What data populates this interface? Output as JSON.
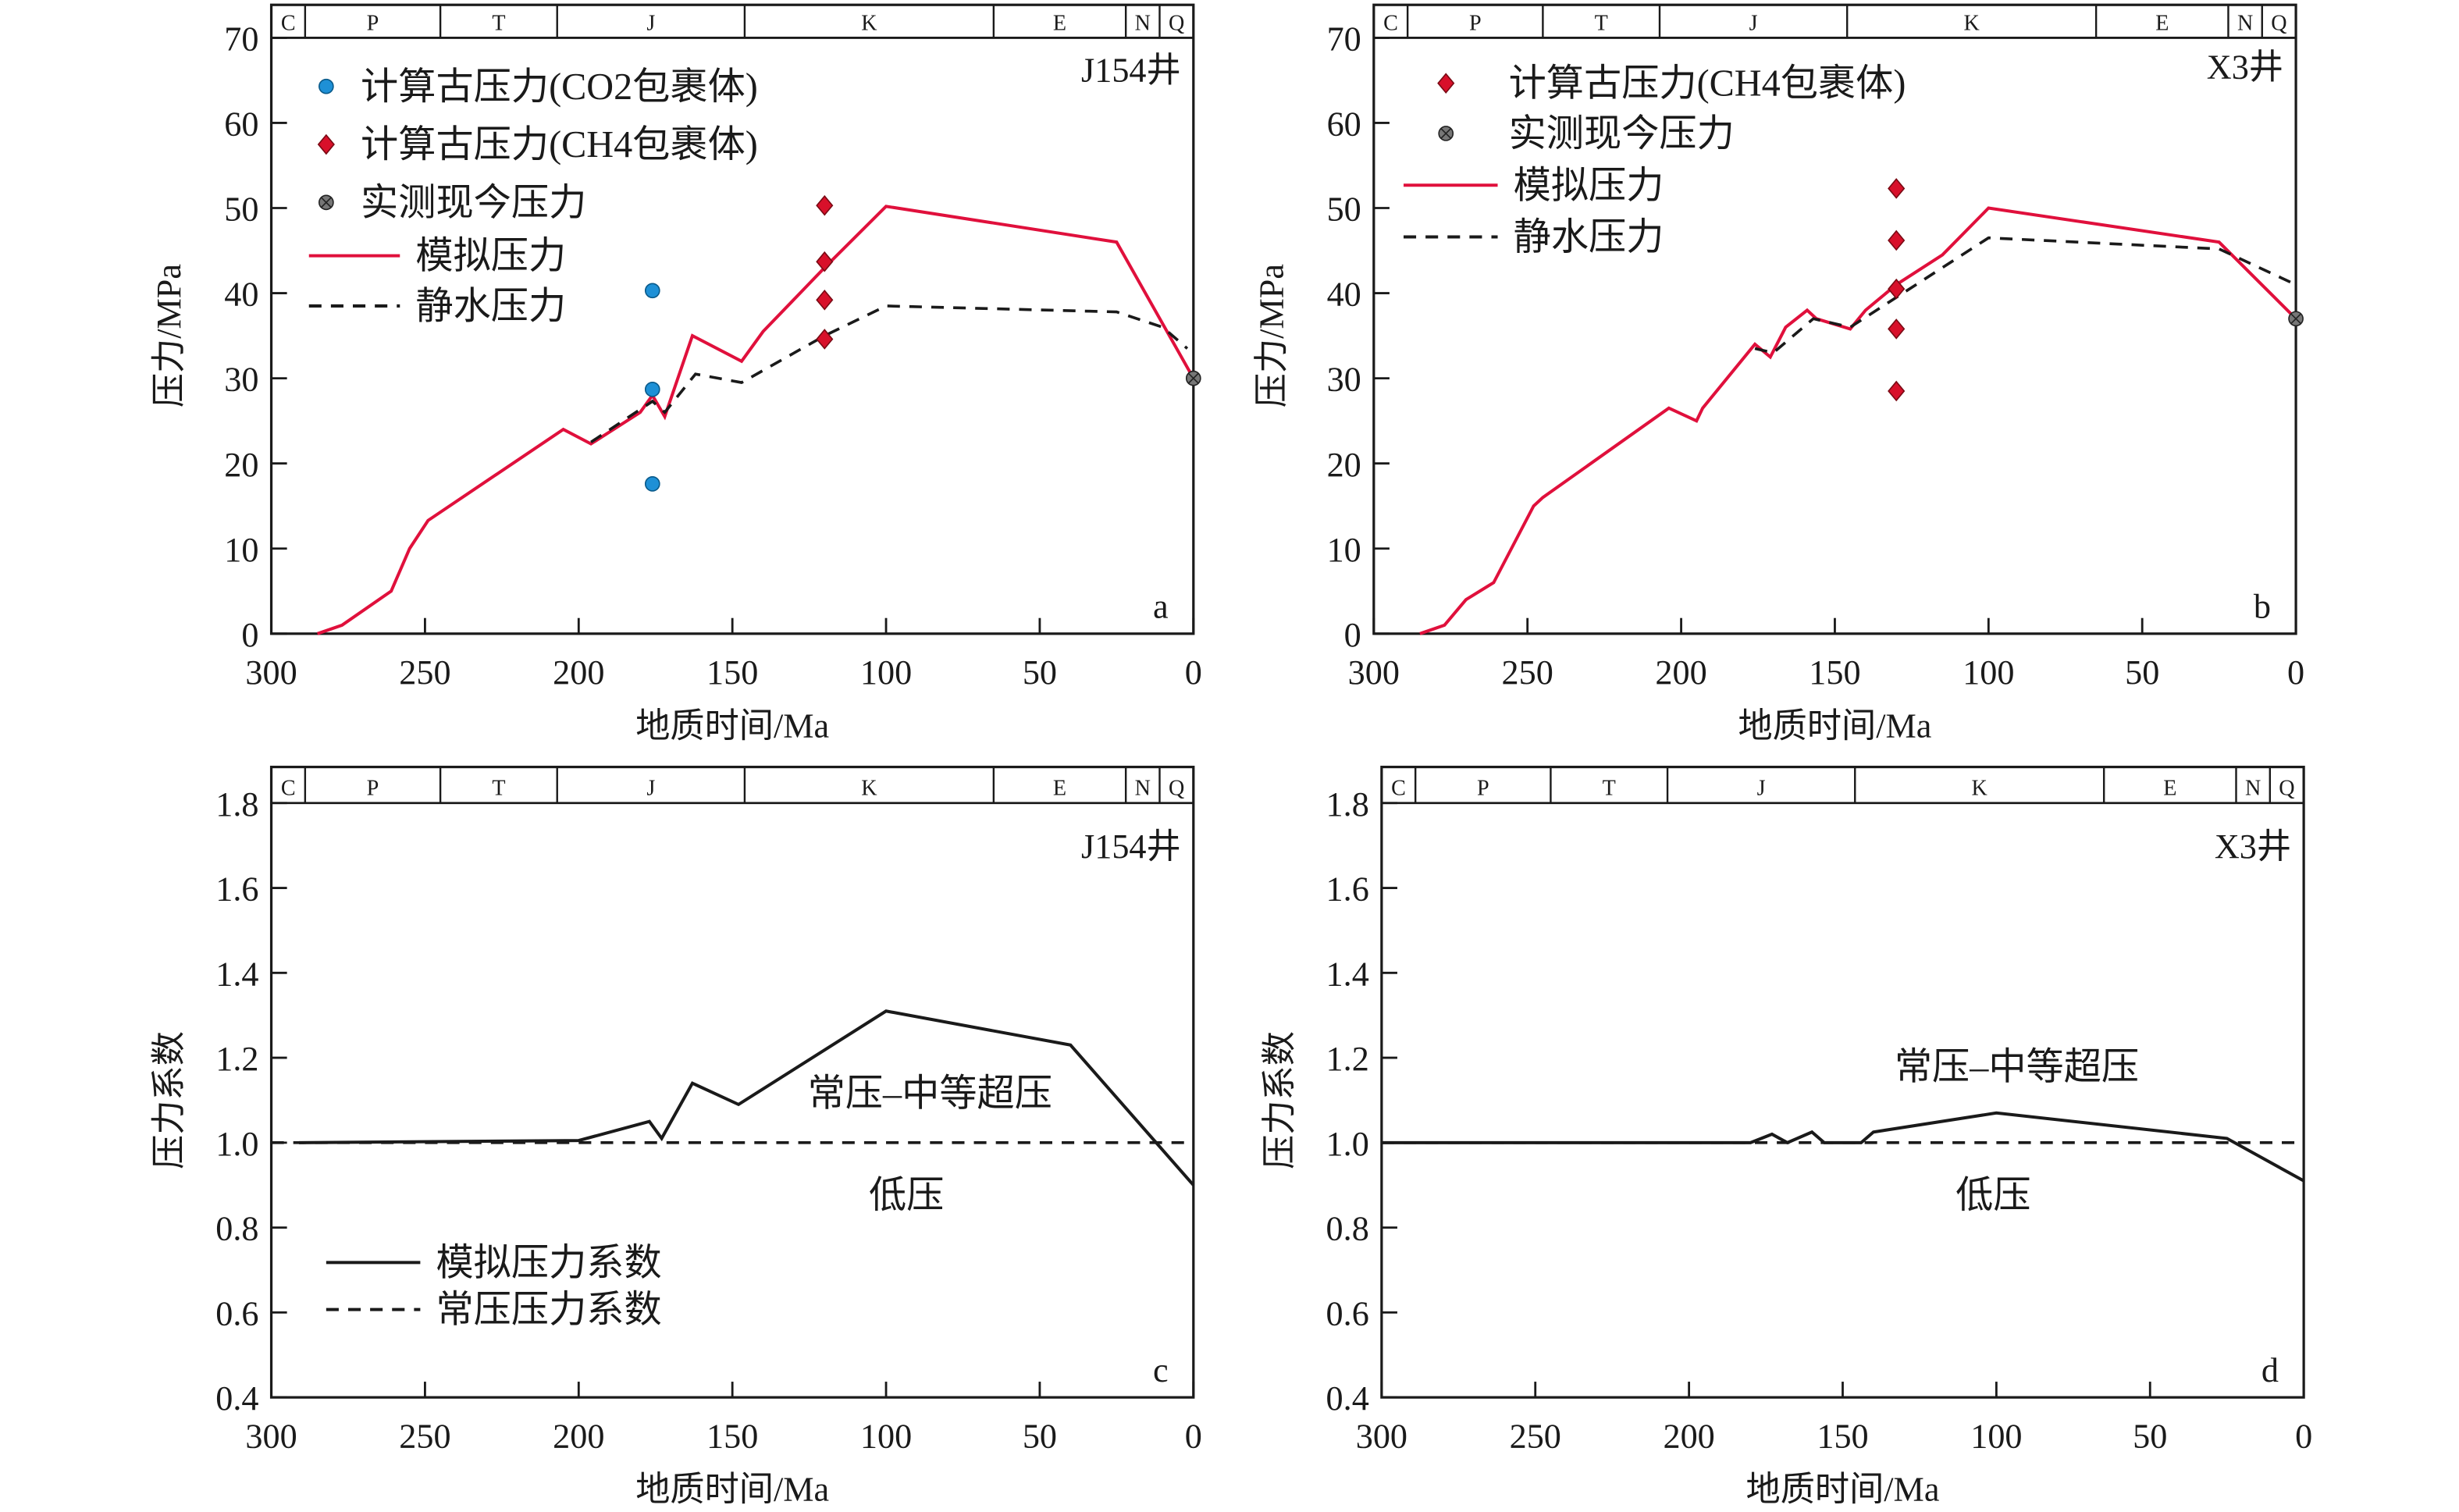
{
  "chart_data": [
    {
      "panel": "a",
      "type": "line",
      "well": "J154井",
      "xlabel": "地质时间/Ma",
      "ylabel": "压力/MPa",
      "xlim": [
        300,
        0
      ],
      "ylim": [
        0,
        70
      ],
      "xticks": [
        300,
        250,
        200,
        150,
        100,
        50,
        0
      ],
      "yticks": [
        0,
        10,
        20,
        30,
        40,
        50,
        60,
        70
      ],
      "periods": [
        "C",
        "P",
        "T",
        "J",
        "K",
        "E",
        "N",
        "Q"
      ],
      "period_bounds": [
        300,
        289,
        245,
        207,
        146,
        65,
        22,
        11,
        0
      ],
      "series": [
        {
          "name": "模拟压力",
          "style": "line",
          "color": "#e0103c",
          "x": [
            285,
            277,
            261,
            255,
            249,
            205,
            196,
            180,
            176,
            172,
            163,
            147,
            140,
            120,
            100,
            25,
            0
          ],
          "y": [
            0,
            1,
            5,
            10,
            13.3,
            24,
            22.3,
            26,
            28,
            25.5,
            35,
            32,
            35.5,
            43,
            50.2,
            46,
            30
          ]
        },
        {
          "name": "静水压力",
          "style": "dashed",
          "color": "#1a1a1a",
          "x": [
            196,
            176,
            172,
            162,
            147,
            120,
            100,
            25,
            10,
            2
          ],
          "y": [
            22.5,
            27.3,
            26,
            30.5,
            29.5,
            35,
            38.5,
            37.8,
            36,
            33.5
          ]
        },
        {
          "name": "计算古压力(CO2包裹体)",
          "style": "circle",
          "color": "#1e90d6",
          "x": [
            176,
            176,
            176
          ],
          "y": [
            40.3,
            28.7,
            17.6
          ]
        },
        {
          "name": "计算古压力(CH4包裹体)",
          "style": "diamond",
          "color": "#d8102a",
          "x": [
            120,
            120,
            120,
            120
          ],
          "y": [
            50.3,
            43.7,
            39.2,
            34.6
          ]
        },
        {
          "name": "实测现今压力",
          "style": "xcircle",
          "color": "#777777",
          "x": [
            0
          ],
          "y": [
            30
          ]
        }
      ],
      "legend_order": [
        2,
        3,
        4,
        0,
        1
      ]
    },
    {
      "panel": "b",
      "type": "line",
      "well": "X3井",
      "xlabel": "地质时间/Ma",
      "ylabel": "压力/MPa",
      "xlim": [
        300,
        0
      ],
      "ylim": [
        0,
        70
      ],
      "xticks": [
        300,
        250,
        200,
        150,
        100,
        50,
        0
      ],
      "yticks": [
        0,
        10,
        20,
        30,
        40,
        50,
        60,
        70
      ],
      "periods": [
        "C",
        "P",
        "T",
        "J",
        "K",
        "E",
        "N",
        "Q"
      ],
      "period_bounds": [
        300,
        289,
        245,
        207,
        146,
        65,
        22,
        11,
        0
      ],
      "series": [
        {
          "name": "模拟压力",
          "style": "line",
          "color": "#e0103c",
          "x": [
            285,
            277,
            270,
            261,
            248,
            245,
            204,
            195,
            193,
            176,
            171,
            166,
            159,
            156,
            145,
            140,
            130,
            115,
            100,
            25,
            0
          ],
          "y": [
            0,
            1,
            4,
            6,
            15,
            16,
            26.5,
            25,
            26.5,
            34,
            32.5,
            36,
            38,
            37,
            35.8,
            38,
            41,
            44.5,
            50,
            46,
            37
          ]
        },
        {
          "name": "静水压力",
          "style": "dashed",
          "color": "#1a1a1a",
          "x": [
            176,
            170,
            157,
            145,
            130,
            100,
            25,
            0
          ],
          "y": [
            33.5,
            33,
            37,
            36,
            39.5,
            46.5,
            45.2,
            41
          ]
        },
        {
          "name": "计算古压力(CH4包裹体)",
          "style": "diamond",
          "color": "#d8102a",
          "x": [
            130,
            130,
            130,
            130,
            130
          ],
          "y": [
            52.3,
            46.2,
            40.5,
            35.8,
            28.5
          ]
        },
        {
          "name": "实测现今压力",
          "style": "xcircle",
          "color": "#777777",
          "x": [
            0
          ],
          "y": [
            37
          ]
        }
      ],
      "legend_order": [
        2,
        3,
        0,
        1
      ]
    },
    {
      "panel": "c",
      "type": "line",
      "well": "J154井",
      "xlabel": "地质时间/Ma",
      "ylabel": "压力系数",
      "xlim": [
        300,
        0
      ],
      "ylim": [
        0.4,
        1.8
      ],
      "xticks": [
        300,
        250,
        200,
        150,
        100,
        50,
        0
      ],
      "yticks": [
        "0.4",
        "0.6",
        "0.8",
        "1.0",
        "1.2",
        "1.4",
        "1.6",
        "1.8"
      ],
      "periods": [
        "C",
        "P",
        "T",
        "J",
        "K",
        "E",
        "N",
        "Q"
      ],
      "period_bounds": [
        300,
        289,
        245,
        207,
        146,
        65,
        22,
        11,
        0
      ],
      "series": [
        {
          "name": "模拟压力系数",
          "style": "line",
          "color": "#1a1a1a",
          "x": [
            291,
            200,
            177,
            173,
            163,
            148,
            100,
            40,
            0
          ],
          "y": [
            1.0,
            1.005,
            1.05,
            1.01,
            1.14,
            1.09,
            1.31,
            1.23,
            0.9
          ]
        },
        {
          "name": "常压压力系数",
          "style": "dashed",
          "color": "#1a1a1a",
          "x": [
            300,
            0
          ],
          "y": [
            1.0,
            1.0
          ]
        }
      ],
      "legend_order": [
        0,
        1
      ],
      "annotations": [
        "常压–中等超压",
        "低压"
      ]
    },
    {
      "panel": "d",
      "type": "line",
      "well": "X3井",
      "xlabel": "地质时间/Ma",
      "ylabel": "压力系数",
      "xlim": [
        300,
        0
      ],
      "ylim": [
        0.4,
        1.8
      ],
      "xticks": [
        300,
        250,
        200,
        150,
        100,
        50,
        0
      ],
      "yticks": [
        "0.4",
        "0.6",
        "0.8",
        "1.0",
        "1.2",
        "1.4",
        "1.6",
        "1.8"
      ],
      "periods": [
        "C",
        "P",
        "T",
        "J",
        "K",
        "E",
        "N",
        "Q"
      ],
      "period_bounds": [
        300,
        289,
        245,
        207,
        146,
        65,
        22,
        11,
        0
      ],
      "series": [
        {
          "name": "模拟压力系数",
          "style": "line",
          "color": "#1a1a1a",
          "x": [
            300,
            180,
            173,
            168,
            160,
            156,
            144,
            140,
            100,
            25,
            0
          ],
          "y": [
            1.0,
            1.0,
            1.02,
            1.0,
            1.025,
            1.0,
            1.0,
            1.025,
            1.07,
            1.01,
            0.91
          ]
        },
        {
          "name": "常压压力系数",
          "style": "dashed",
          "color": "#1a1a1a",
          "x": [
            300,
            0
          ],
          "y": [
            1.0,
            1.0
          ]
        }
      ],
      "legend_order": [],
      "annotations": [
        "常压–中等超压",
        "低压"
      ]
    }
  ]
}
